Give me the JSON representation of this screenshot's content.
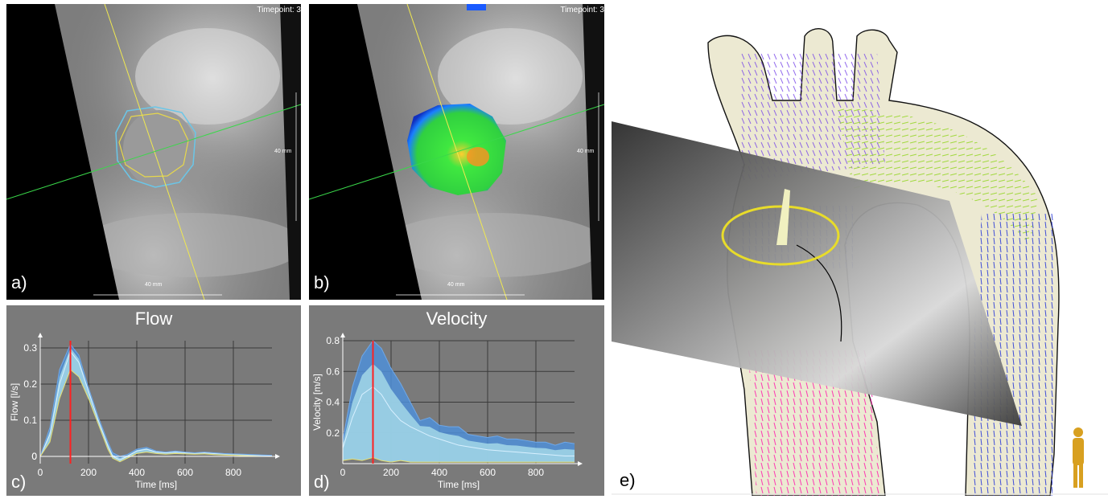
{
  "panel_a": {
    "label": "a)",
    "timepoint": "Timepoint: 3",
    "scale_h": "40 mm",
    "scale_v": "40 mm"
  },
  "panel_b": {
    "label": "b)",
    "timepoint": "Timepoint: 3",
    "scale_h": "40 mm",
    "scale_v": "40 mm"
  },
  "panel_c": {
    "label": "c)"
  },
  "panel_d": {
    "label": "d)"
  },
  "panel_e": {
    "label": "e)"
  },
  "colors": {
    "chart_bg": "#7a7a7a",
    "band_fill": "#9fd3e6",
    "band_edge": "#4f8fd8",
    "marker": "#ff2020",
    "grid": "#3a3a3a"
  },
  "chart_data": [
    {
      "type": "area",
      "title": "Flow",
      "xlabel": "Time [ms]",
      "ylabel": "Flow [l/s]",
      "xlim": [
        0,
        960
      ],
      "ylim": [
        -0.02,
        0.32
      ],
      "xticks": [
        0,
        200,
        400,
        600,
        800
      ],
      "yticks": [
        0,
        0.1,
        0.2,
        0.3
      ],
      "ytick_labels": [
        "0",
        "0.1",
        "0.2",
        "0.3"
      ],
      "marker_x": 125,
      "x": [
        0,
        40,
        80,
        125,
        160,
        200,
        240,
        280,
        300,
        330,
        360,
        400,
        440,
        480,
        520,
        560,
        600,
        640,
        680,
        720,
        760,
        800,
        840,
        880,
        920,
        960
      ],
      "series": [
        {
          "values": [
            0.0,
            0.06,
            0.2,
            0.29,
            0.26,
            0.18,
            0.1,
            0.03,
            0.0,
            -0.01,
            0.0,
            0.015,
            0.02,
            0.012,
            0.01,
            0.012,
            0.01,
            0.009,
            0.01,
            0.008,
            0.007,
            0.006,
            0.005,
            0.004,
            0.003,
            0.002
          ]
        },
        {
          "values": [
            0.0,
            0.08,
            0.24,
            0.31,
            0.28,
            0.19,
            0.11,
            0.04,
            0.01,
            0.0,
            0.005,
            0.02,
            0.025,
            0.015,
            0.012,
            0.015,
            0.012,
            0.01,
            0.012,
            0.01,
            0.008,
            0.007,
            0.006,
            0.005,
            0.004,
            0.003
          ]
        },
        {
          "values": [
            0.0,
            0.04,
            0.16,
            0.24,
            0.22,
            0.16,
            0.09,
            0.02,
            -0.005,
            -0.015,
            -0.005,
            0.008,
            0.012,
            0.008,
            0.006,
            0.008,
            0.007,
            0.006,
            0.007,
            0.005,
            0.004,
            0.003,
            0.002,
            0.001,
            0.0,
            0.0
          ]
        }
      ]
    },
    {
      "type": "area",
      "title": "Velocity",
      "xlabel": "Time [ms]",
      "ylabel": "Velocity [m/s]",
      "xlim": [
        0,
        960
      ],
      "ylim": [
        0,
        0.8
      ],
      "xticks": [
        0,
        200,
        400,
        600,
        800
      ],
      "yticks": [
        0.2,
        0.4,
        0.6,
        0.8
      ],
      "ytick_labels": [
        "0.2",
        "0.4",
        "0.6",
        "0.8"
      ],
      "marker_x": 125,
      "x": [
        0,
        40,
        80,
        125,
        160,
        200,
        240,
        280,
        320,
        360,
        400,
        440,
        480,
        520,
        560,
        600,
        640,
        680,
        720,
        760,
        800,
        840,
        880,
        920,
        960
      ],
      "series": [
        {
          "values": [
            0.1,
            0.3,
            0.45,
            0.5,
            0.45,
            0.35,
            0.28,
            0.24,
            0.21,
            0.18,
            0.16,
            0.14,
            0.12,
            0.11,
            0.1,
            0.09,
            0.085,
            0.08,
            0.075,
            0.07,
            0.065,
            0.06,
            0.055,
            0.05,
            0.05
          ]
        },
        {
          "values": [
            0.15,
            0.5,
            0.7,
            0.8,
            0.75,
            0.62,
            0.52,
            0.4,
            0.28,
            0.3,
            0.25,
            0.24,
            0.24,
            0.19,
            0.18,
            0.17,
            0.18,
            0.16,
            0.16,
            0.15,
            0.14,
            0.14,
            0.12,
            0.14,
            0.13
          ]
        },
        {
          "values": [
            0.02,
            0.03,
            0.02,
            0.04,
            0.02,
            0.01,
            0.02,
            0.01,
            0.01,
            0.01,
            0.01,
            0.01,
            0.01,
            0.01,
            0.01,
            0.01,
            0.01,
            0.01,
            0.01,
            0.01,
            0.01,
            0.01,
            0.01,
            0.01,
            0.01
          ]
        }
      ]
    }
  ]
}
